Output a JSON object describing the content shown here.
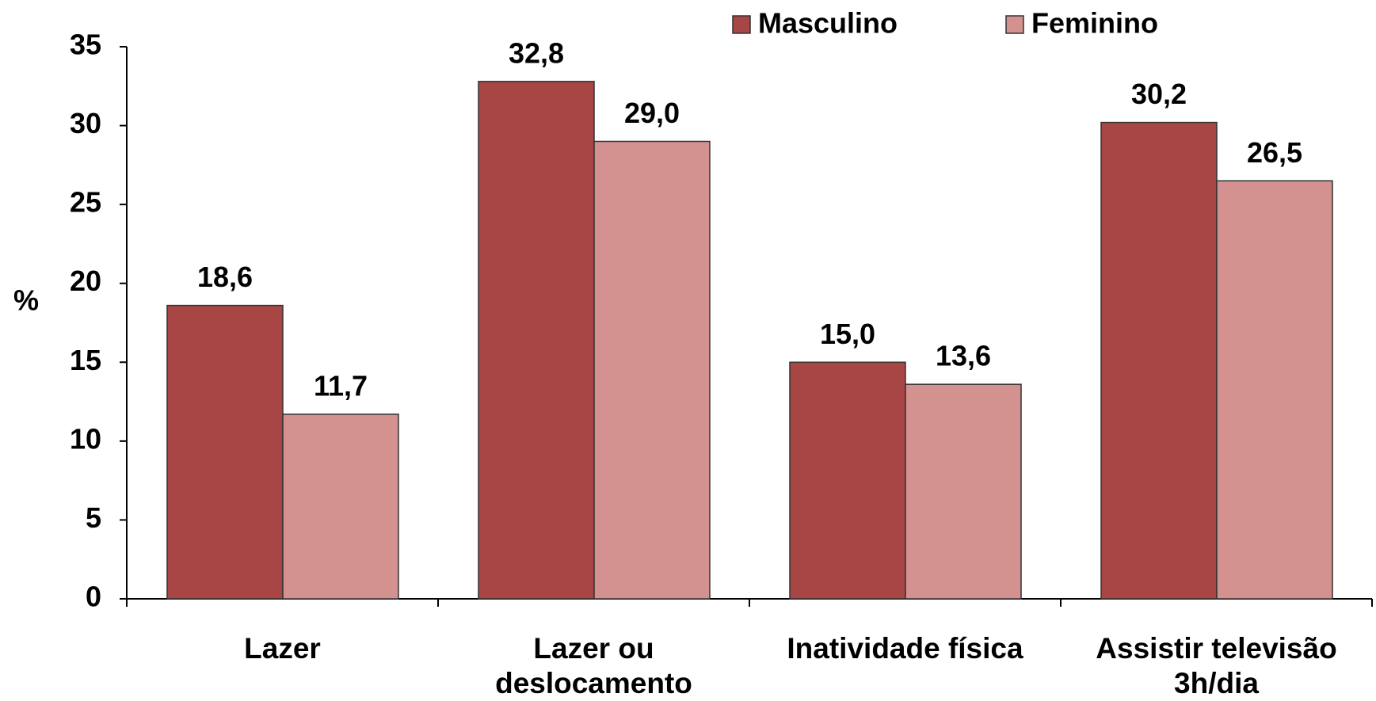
{
  "chart_data": {
    "type": "bar",
    "y_label": "%",
    "categories": [
      "Lazer",
      "Lazer ou deslocamento",
      "Inatividade física",
      "Assistir televisão 3h/dia"
    ],
    "series": [
      {
        "name": "Masculino",
        "color": "#a84646",
        "values": [
          18.6,
          32.8,
          15.0,
          30.2
        ],
        "value_labels": [
          "18,6",
          "32,8",
          "15,0",
          "30,2"
        ]
      },
      {
        "name": "Feminino",
        "color": "#d39190",
        "values": [
          11.7,
          29.0,
          13.6,
          26.5
        ],
        "value_labels": [
          "11,7",
          "29,0",
          "13,6",
          "26,5"
        ]
      }
    ],
    "ylim": [
      0,
      35
    ],
    "yticks": [
      0,
      5,
      10,
      15,
      20,
      25,
      30,
      35
    ]
  }
}
